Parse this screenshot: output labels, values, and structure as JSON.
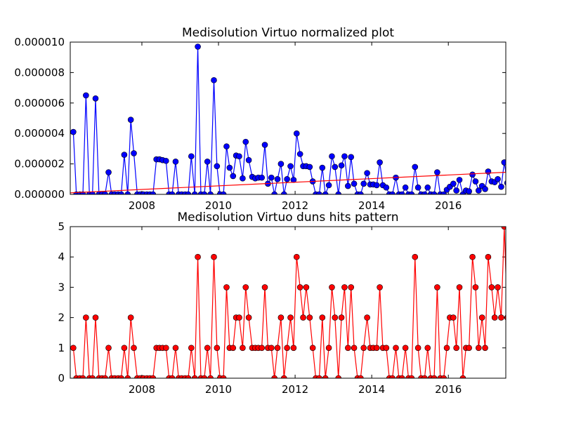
{
  "chart_data": [
    {
      "type": "line",
      "title": "Medisolution Virtuo normalized plot",
      "x": [
        2006.21,
        2006.29,
        2006.38,
        2006.46,
        2006.54,
        2006.63,
        2006.71,
        2006.79,
        2006.88,
        2006.96,
        2007.04,
        2007.13,
        2007.21,
        2007.29,
        2007.38,
        2007.46,
        2007.54,
        2007.63,
        2007.71,
        2007.79,
        2007.88,
        2007.96,
        2008.04,
        2008.13,
        2008.21,
        2008.29,
        2008.38,
        2008.46,
        2008.54,
        2008.63,
        2008.71,
        2008.79,
        2008.88,
        2008.96,
        2009.04,
        2009.13,
        2009.21,
        2009.29,
        2009.38,
        2009.46,
        2009.54,
        2009.63,
        2009.71,
        2009.79,
        2009.88,
        2009.96,
        2010.04,
        2010.13,
        2010.21,
        2010.29,
        2010.38,
        2010.46,
        2010.54,
        2010.63,
        2010.71,
        2010.79,
        2010.88,
        2010.96,
        2011.04,
        2011.13,
        2011.21,
        2011.29,
        2011.38,
        2011.46,
        2011.54,
        2011.63,
        2011.71,
        2011.79,
        2011.88,
        2011.96,
        2012.04,
        2012.13,
        2012.21,
        2012.29,
        2012.38,
        2012.46,
        2012.54,
        2012.63,
        2012.71,
        2012.79,
        2012.88,
        2012.96,
        2013.04,
        2013.13,
        2013.21,
        2013.29,
        2013.38,
        2013.46,
        2013.54,
        2013.63,
        2013.71,
        2013.79,
        2013.88,
        2013.96,
        2014.04,
        2014.13,
        2014.21,
        2014.29,
        2014.38,
        2014.46,
        2014.54,
        2014.63,
        2014.71,
        2014.79,
        2014.88,
        2014.96,
        2015.04,
        2015.13,
        2015.21,
        2015.29,
        2015.38,
        2015.46,
        2015.54,
        2015.63,
        2015.71,
        2015.79,
        2015.88,
        2015.96,
        2016.04,
        2016.13,
        2016.21,
        2016.29,
        2016.38,
        2016.46,
        2016.54,
        2016.63,
        2016.71,
        2016.79,
        2016.88,
        2016.96,
        2017.04,
        2017.13,
        2017.21,
        2017.29,
        2017.38,
        2017.46,
        2017.54
      ],
      "series": [
        {
          "color": "#0000ff",
          "values": [
            4.1e-06,
            0,
            0,
            0,
            6.5e-06,
            0,
            0,
            6.3e-06,
            0,
            0,
            0,
            1.45e-06,
            0,
            0,
            0,
            0,
            2.6e-06,
            0,
            4.9e-06,
            2.7e-06,
            0,
            0,
            0,
            0,
            0,
            0,
            2.3e-06,
            2.3e-06,
            2.25e-06,
            2.2e-06,
            0,
            0,
            2.15e-06,
            0,
            0,
            0,
            0,
            2.5e-06,
            0,
            9.7e-06,
            0,
            0,
            2.15e-06,
            0,
            7.5e-06,
            1.85e-06,
            0,
            0,
            3.15e-06,
            1.75e-06,
            1.2e-06,
            2.55e-06,
            2.5e-06,
            1.05e-06,
            3.45e-06,
            2.25e-06,
            1.15e-06,
            1.05e-06,
            1.1e-06,
            1.1e-06,
            3.25e-06,
            7e-07,
            1.1e-06,
            0,
            1e-06,
            2e-06,
            0,
            1e-06,
            1.85e-06,
            9.5e-07,
            4e-06,
            2.65e-06,
            1.85e-06,
            1.85e-06,
            1.8e-06,
            8.5e-07,
            0,
            0,
            1.75e-06,
            0,
            6e-07,
            2.5e-06,
            1.8e-06,
            0,
            1.9e-06,
            2.5e-06,
            5.5e-07,
            2.45e-06,
            7e-07,
            0,
            0,
            7e-07,
            1.4e-06,
            6.5e-07,
            6.5e-07,
            6e-07,
            2.1e-06,
            6e-07,
            4.5e-07,
            0,
            0,
            1.1e-06,
            0,
            0,
            4.5e-07,
            0,
            0,
            1.8e-06,
            4.5e-07,
            0,
            0,
            4.5e-07,
            0,
            0,
            1.45e-06,
            0,
            0,
            3e-07,
            5e-07,
            7e-07,
            2.5e-07,
            9.5e-07,
            0,
            2.5e-07,
            2e-07,
            1.3e-06,
            8.5e-07,
            2.5e-07,
            5.5e-07,
            3.5e-07,
            1.5e-06,
            8.5e-07,
            8e-07,
            1e-06,
            5e-07,
            2.1e-06,
            7.5e-07
          ]
        }
      ],
      "trend": {
        "color": "#ff0000",
        "x": [
          2006.13,
          2017.5
        ],
        "values": [
          1e-07,
          1.45e-06
        ]
      },
      "xlim": [
        2006.13,
        2017.5
      ],
      "xticks": [
        2008,
        2010,
        2012,
        2014,
        2016
      ],
      "ylim": [
        0,
        1e-05
      ],
      "yticks": [
        {
          "value": 0,
          "label": "0.000000"
        },
        {
          "value": 2e-06,
          "label": "0.000002"
        },
        {
          "value": 4e-06,
          "label": "0.000004"
        },
        {
          "value": 6e-06,
          "label": "0.000006"
        },
        {
          "value": 8e-06,
          "label": "0.000008"
        },
        {
          "value": 1e-05,
          "label": "0.000010"
        }
      ]
    },
    {
      "type": "line",
      "title": "Medisolution Virtuo duns hits pattern",
      "x": [
        2006.21,
        2006.29,
        2006.38,
        2006.46,
        2006.54,
        2006.63,
        2006.71,
        2006.79,
        2006.88,
        2006.96,
        2007.04,
        2007.13,
        2007.21,
        2007.29,
        2007.38,
        2007.46,
        2007.54,
        2007.63,
        2007.71,
        2007.79,
        2007.88,
        2007.96,
        2008.04,
        2008.13,
        2008.21,
        2008.29,
        2008.38,
        2008.46,
        2008.54,
        2008.63,
        2008.71,
        2008.79,
        2008.88,
        2008.96,
        2009.04,
        2009.13,
        2009.21,
        2009.29,
        2009.38,
        2009.46,
        2009.54,
        2009.63,
        2009.71,
        2009.79,
        2009.88,
        2009.96,
        2010.04,
        2010.13,
        2010.21,
        2010.29,
        2010.38,
        2010.46,
        2010.54,
        2010.63,
        2010.71,
        2010.79,
        2010.88,
        2010.96,
        2011.04,
        2011.13,
        2011.21,
        2011.29,
        2011.38,
        2011.46,
        2011.54,
        2011.63,
        2011.71,
        2011.79,
        2011.88,
        2011.96,
        2012.04,
        2012.13,
        2012.21,
        2012.29,
        2012.38,
        2012.46,
        2012.54,
        2012.63,
        2012.71,
        2012.79,
        2012.88,
        2012.96,
        2013.04,
        2013.13,
        2013.21,
        2013.29,
        2013.38,
        2013.46,
        2013.54,
        2013.63,
        2013.71,
        2013.79,
        2013.88,
        2013.96,
        2014.04,
        2014.13,
        2014.21,
        2014.29,
        2014.38,
        2014.46,
        2014.54,
        2014.63,
        2014.71,
        2014.79,
        2014.88,
        2014.96,
        2015.04,
        2015.13,
        2015.21,
        2015.29,
        2015.38,
        2015.46,
        2015.54,
        2015.63,
        2015.71,
        2015.79,
        2015.88,
        2015.96,
        2016.04,
        2016.13,
        2016.21,
        2016.29,
        2016.38,
        2016.46,
        2016.54,
        2016.63,
        2016.71,
        2016.79,
        2016.88,
        2016.96,
        2017.04,
        2017.13,
        2017.21,
        2017.29,
        2017.38,
        2017.46,
        2017.54
      ],
      "series": [
        {
          "color": "#ff0000",
          "values": [
            1,
            0,
            0,
            0,
            2,
            0,
            0,
            2,
            0,
            0,
            0,
            1,
            0,
            0,
            0,
            0,
            1,
            0,
            2,
            1,
            0,
            0,
            0,
            0,
            0,
            0,
            1,
            1,
            1,
            1,
            0,
            0,
            1,
            0,
            0,
            0,
            0,
            1,
            0,
            4,
            0,
            0,
            1,
            0,
            4,
            1,
            0,
            0,
            3,
            1,
            1,
            2,
            2,
            1,
            3,
            2,
            1,
            1,
            1,
            1,
            3,
            1,
            1,
            0,
            1,
            2,
            0,
            1,
            2,
            1,
            4,
            3,
            2,
            3,
            2,
            1,
            0,
            0,
            2,
            0,
            1,
            3,
            2,
            0,
            2,
            3,
            1,
            3,
            1,
            0,
            0,
            1,
            2,
            1,
            1,
            1,
            3,
            1,
            1,
            0,
            0,
            1,
            0,
            0,
            1,
            0,
            0,
            4,
            1,
            0,
            0,
            1,
            0,
            0,
            3,
            0,
            0,
            1,
            2,
            2,
            1,
            3,
            0,
            1,
            1,
            4,
            3,
            1,
            2,
            1,
            4,
            3,
            2,
            3,
            2,
            5,
            2
          ]
        }
      ],
      "xlim": [
        2006.13,
        2017.5
      ],
      "xticks": [
        2008,
        2010,
        2012,
        2014,
        2016
      ],
      "ylim": [
        0,
        5
      ],
      "yticks": [
        0,
        1,
        2,
        3,
        4,
        5
      ]
    }
  ]
}
